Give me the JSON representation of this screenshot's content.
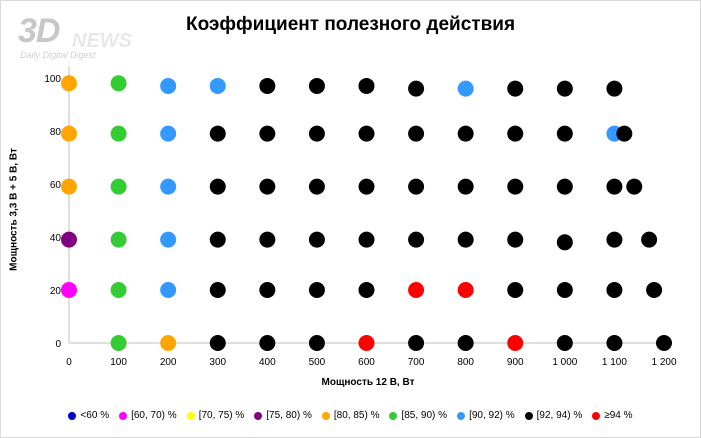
{
  "logo": {
    "big": "3D",
    "news": "NEWS",
    "tagline": "Daily Digital Digest"
  },
  "chart_data": {
    "type": "scatter",
    "title": "Коэффициент полезного действия",
    "xlabel": "Мощность  12 В, Вт",
    "ylabel": "Мощность  3,3 В + 5 В, Вт",
    "xlim": [
      0,
      1200
    ],
    "ylim": [
      0,
      100
    ],
    "xticks": [
      0,
      100,
      200,
      300,
      400,
      500,
      600,
      700,
      800,
      900,
      1000,
      1100,
      1200
    ],
    "xtick_labels": [
      "0",
      "100",
      "200",
      "300",
      "400",
      "500",
      "600",
      "700",
      "800",
      "900",
      "1 000",
      "1 100",
      "1 200"
    ],
    "yticks": [
      0,
      20,
      40,
      60,
      80,
      100
    ],
    "ytick_labels": [
      "0",
      "20",
      "40",
      "60",
      "80",
      "100"
    ],
    "legend_position": "bottom",
    "series": [
      {
        "name": "<60 %",
        "color": "#0000cc",
        "points": []
      },
      {
        "name": "[60, 70) %",
        "color": "#ff00ff",
        "points": [
          [
            0,
            20
          ]
        ]
      },
      {
        "name": "[70, 75) %",
        "color": "#ffff00",
        "points": []
      },
      {
        "name": "[75, 80) %",
        "color": "#800080",
        "points": [
          [
            0,
            39
          ]
        ]
      },
      {
        "name": "[80, 85) %",
        "color": "#ffa500",
        "points": [
          [
            0,
            98
          ],
          [
            0,
            79
          ],
          [
            0,
            59
          ],
          [
            200,
            0
          ]
        ]
      },
      {
        "name": "[85, 90) %",
        "color": "#33cc33",
        "points": [
          [
            100,
            98
          ],
          [
            100,
            79
          ],
          [
            100,
            59
          ],
          [
            100,
            39
          ],
          [
            100,
            20
          ],
          [
            100,
            0
          ]
        ]
      },
      {
        "name": "[90, 92) %",
        "color": "#3399ff",
        "points": [
          [
            200,
            97
          ],
          [
            300,
            97
          ],
          [
            800,
            96
          ],
          [
            200,
            79
          ],
          [
            1100,
            79
          ],
          [
            200,
            59
          ],
          [
            200,
            39
          ],
          [
            200,
            20
          ]
        ]
      },
      {
        "name": "[92, 94) %",
        "color": "#000000",
        "points": [
          [
            400,
            97
          ],
          [
            500,
            97
          ],
          [
            600,
            97
          ],
          [
            700,
            96
          ],
          [
            900,
            96
          ],
          [
            1000,
            96
          ],
          [
            1100,
            96
          ],
          [
            300,
            79
          ],
          [
            400,
            79
          ],
          [
            500,
            79
          ],
          [
            600,
            79
          ],
          [
            700,
            79
          ],
          [
            800,
            79
          ],
          [
            900,
            79
          ],
          [
            1000,
            79
          ],
          [
            1120,
            79
          ],
          [
            300,
            59
          ],
          [
            400,
            59
          ],
          [
            500,
            59
          ],
          [
            600,
            59
          ],
          [
            700,
            59
          ],
          [
            800,
            59
          ],
          [
            900,
            59
          ],
          [
            1000,
            59
          ],
          [
            1100,
            59
          ],
          [
            1140,
            59
          ],
          [
            300,
            39
          ],
          [
            400,
            39
          ],
          [
            500,
            39
          ],
          [
            600,
            39
          ],
          [
            700,
            39
          ],
          [
            800,
            39
          ],
          [
            900,
            39
          ],
          [
            1000,
            38
          ],
          [
            1100,
            39
          ],
          [
            1170,
            39
          ],
          [
            300,
            20
          ],
          [
            400,
            20
          ],
          [
            500,
            20
          ],
          [
            600,
            20
          ],
          [
            900,
            20
          ],
          [
            1000,
            20
          ],
          [
            1100,
            20
          ],
          [
            1180,
            20
          ],
          [
            300,
            0
          ],
          [
            400,
            0
          ],
          [
            500,
            0
          ],
          [
            700,
            0
          ],
          [
            800,
            0
          ],
          [
            1000,
            0
          ],
          [
            1100,
            0
          ],
          [
            1200,
            0
          ]
        ]
      },
      {
        "name": "≥94 %",
        "color": "#ff0000",
        "points": [
          [
            700,
            20
          ],
          [
            800,
            20
          ],
          [
            600,
            0
          ],
          [
            900,
            0
          ]
        ]
      }
    ]
  }
}
